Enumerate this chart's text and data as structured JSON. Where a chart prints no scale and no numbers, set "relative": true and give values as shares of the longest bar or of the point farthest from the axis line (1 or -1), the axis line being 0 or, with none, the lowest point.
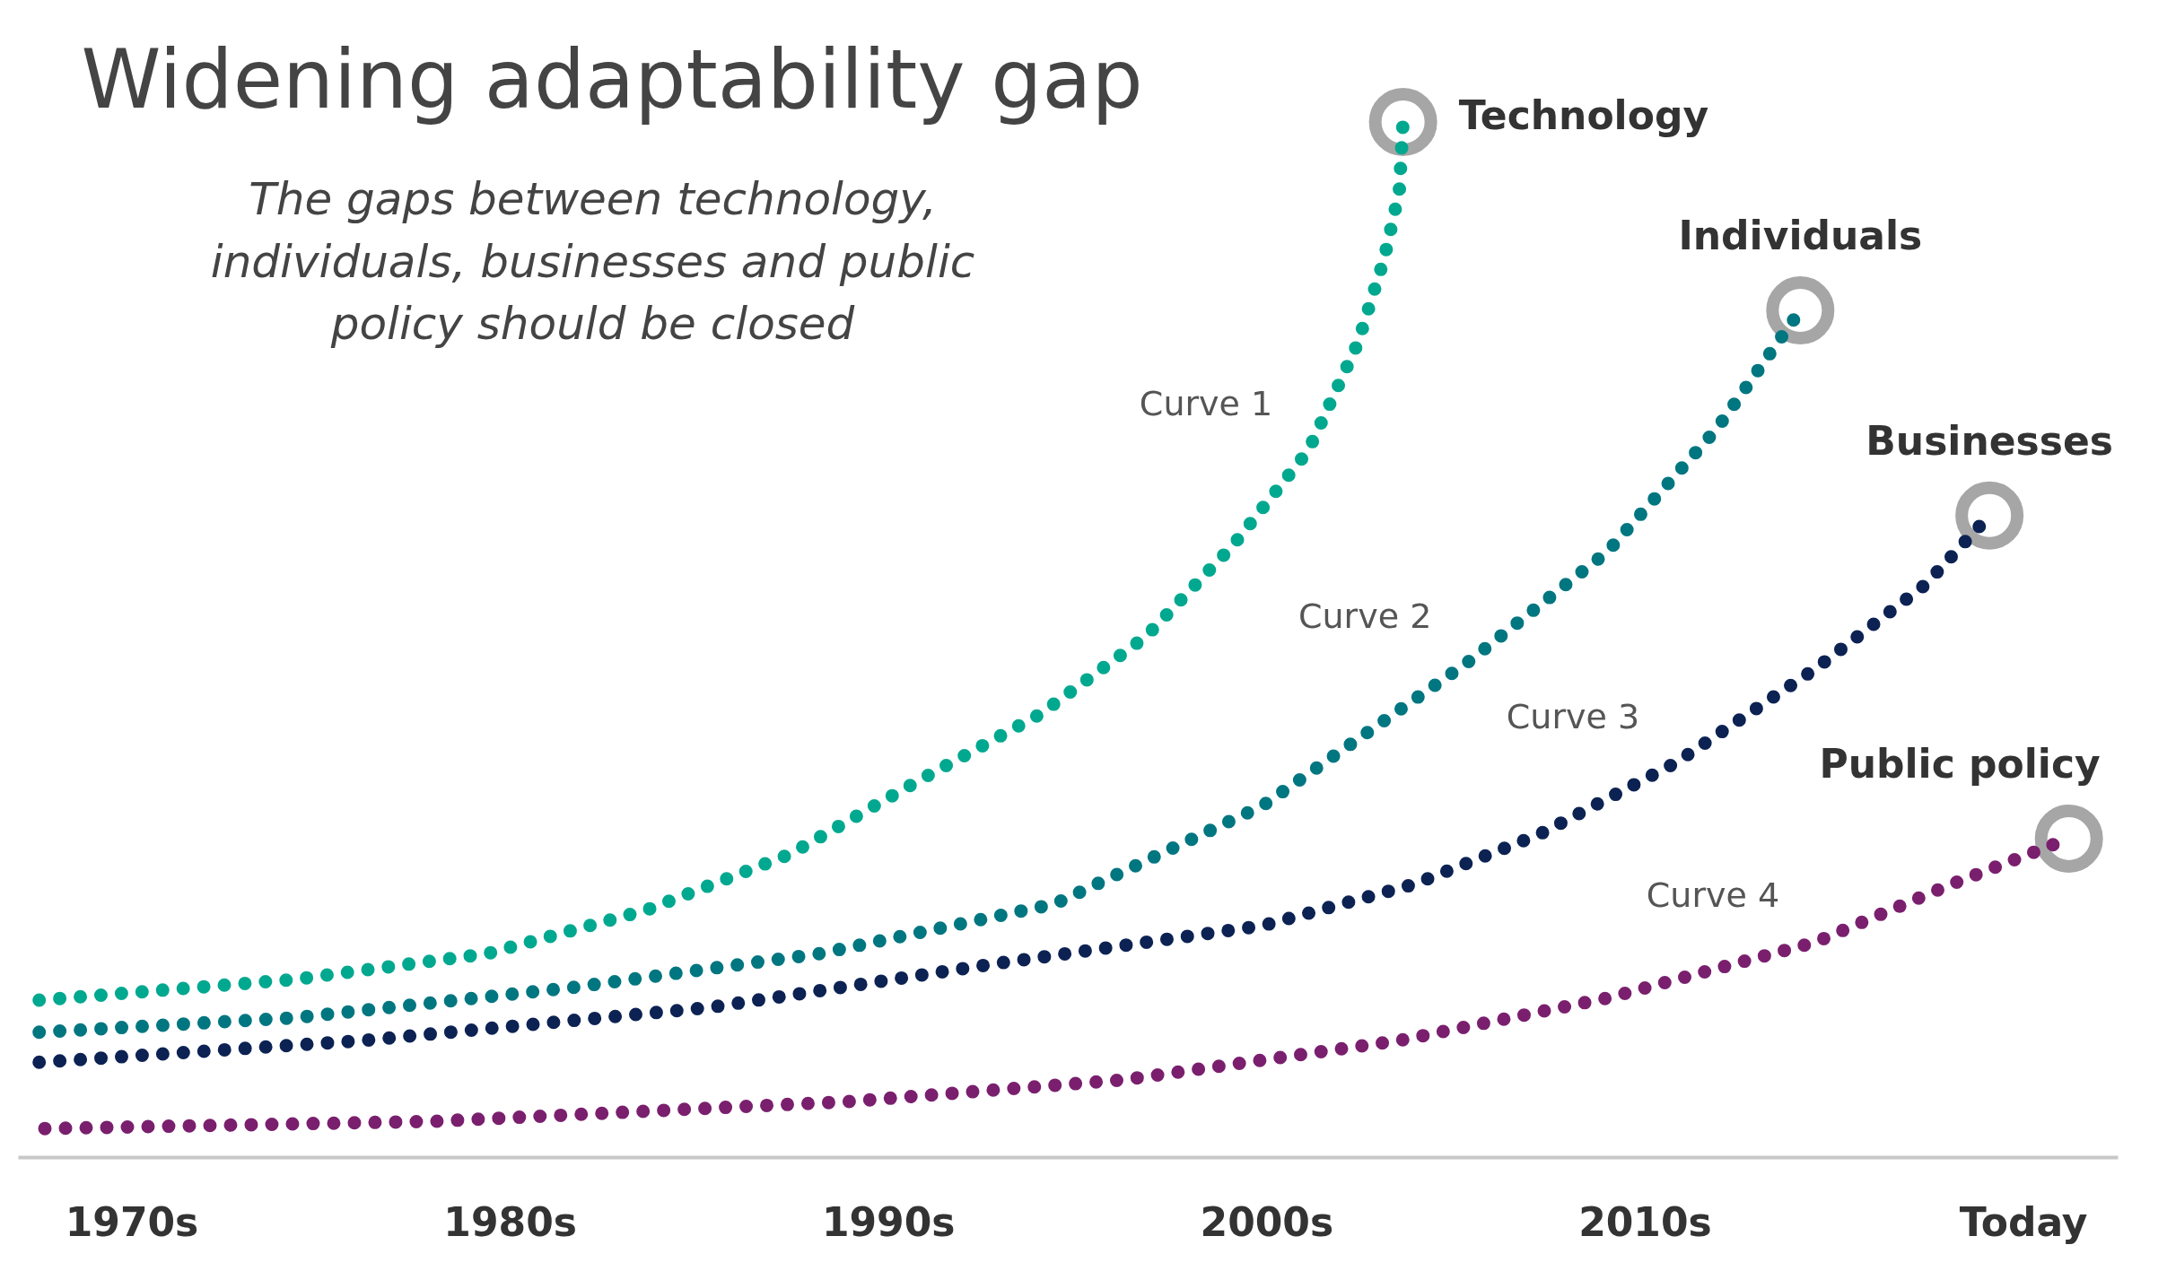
{
  "chart_data": {
    "type": "line",
    "title": "Widening adaptability gap",
    "subtitle": "The gaps between technology,\nindividuals, businesses and public\npolicy should be closed",
    "relative": true,
    "line_style": "dotted",
    "grid": false,
    "tick_labels": "x",
    "xlim": [
      1967,
      2022.5
    ],
    "xticks": [
      {
        "value": 1970,
        "label": "1970s"
      },
      {
        "value": 1980,
        "label": "1980s"
      },
      {
        "value": 1990,
        "label": "1990s"
      },
      {
        "value": 2000,
        "label": "2000s"
      },
      {
        "value": 2010,
        "label": "2010s"
      },
      {
        "value": 2020,
        "label": "Today"
      }
    ],
    "series": [
      {
        "name": "Technology",
        "color": "#00a88f",
        "x": [
          1967.55,
          1974.3,
          1979.4,
          1983.6,
          1987.4,
          1990.7,
          1994.0,
          1996.8,
          1999.1,
          2001.1,
          2002.4,
          2003.1,
          2003.5,
          2003.6
        ],
        "values": [
          0.152,
          0.172,
          0.197,
          0.239,
          0.293,
          0.362,
          0.428,
          0.503,
          0.591,
          0.683,
          0.786,
          0.868,
          0.933,
          1.0
        ]
      },
      {
        "name": "Individuals",
        "color": "#007680",
        "x": [
          1967.55,
          1974.3,
          1981.6,
          1988.2,
          1994.4,
          1999.9,
          2005.3,
          2009.0,
          2011.9,
          2014.1
        ],
        "values": [
          0.121,
          0.135,
          0.164,
          0.197,
          0.245,
          0.34,
          0.478,
          0.585,
          0.704,
          0.818
        ]
      },
      {
        "name": "Businesses",
        "color": "#0c2253",
        "x": [
          1967.55,
          1976.1,
          1985.3,
          1992.6,
          1999.9,
          2003.9,
          2007.2,
          2010.8,
          2014.5,
          2017.4,
          2019.1
        ],
        "values": [
          0.092,
          0.113,
          0.145,
          0.186,
          0.224,
          0.264,
          0.312,
          0.381,
          0.472,
          0.553,
          0.62
        ]
      },
      {
        "name": "Public policy",
        "color": "#7a1f6e",
        "x": [
          1967.7,
          1978.0,
          1988.9,
          1996.2,
          2003.5,
          2009.0,
          2014.5,
          2018.1,
          2021.2
        ],
        "values": [
          0.028,
          0.035,
          0.054,
          0.075,
          0.113,
          0.154,
          0.208,
          0.264,
          0.308
        ]
      }
    ],
    "annotations": [
      "Curve 1",
      "Curve 2",
      "Curve 3",
      "Curve 4"
    ]
  }
}
